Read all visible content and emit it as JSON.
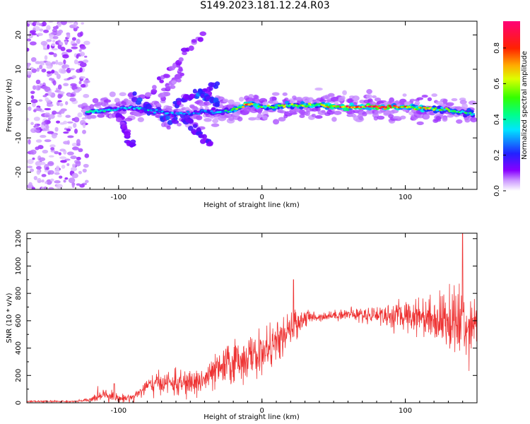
{
  "title": "S149.2023.181.12.24.R03",
  "chart_data": [
    {
      "type": "heatmap",
      "xlabel": "Height of straight line (km)",
      "ylabel": "Frequency (Hz)",
      "xlim": [
        -164,
        150
      ],
      "ylim": [
        -25,
        24
      ],
      "xticks": [
        -100,
        0,
        100
      ],
      "xtick_labels": [
        "-100",
        "0",
        "100"
      ],
      "yticks": [
        -20,
        -10,
        0,
        10,
        20
      ],
      "ytick_labels": [
        "-20",
        "-10",
        "0",
        "10",
        "20"
      ],
      "colorbar": {
        "label": "Normalized spectral amplitude",
        "range": [
          0,
          0.95
        ],
        "ticks": [
          0.0,
          0.2,
          0.4,
          0.6,
          0.8
        ],
        "tick_labels": [
          "0.0",
          "0.2",
          "0.4",
          "0.6",
          "0.8"
        ]
      },
      "ridge": {
        "description_points_x": [
          -122,
          -110,
          -100,
          -90,
          -80,
          -70,
          -60,
          -50,
          -40,
          -30,
          -20,
          -10,
          0,
          10,
          20,
          40,
          60,
          80,
          100,
          120,
          140,
          148
        ],
        "frequency": [
          -2.5,
          -2.0,
          -1.5,
          -1.0,
          -2.0,
          -2.5,
          -3.0,
          -3.0,
          -2.5,
          -2.5,
          -2.0,
          0.0,
          -1.0,
          -1.0,
          -0.5,
          -0.5,
          -1.0,
          -1.0,
          -1.0,
          -1.5,
          -2.5,
          -3.0
        ],
        "amplitude": [
          0.45,
          0.4,
          0.35,
          0.35,
          0.35,
          0.3,
          0.3,
          0.3,
          0.3,
          0.35,
          0.45,
          0.8,
          0.5,
          0.55,
          0.6,
          0.6,
          0.85,
          0.9,
          0.75,
          0.6,
          0.45,
          0.4
        ]
      }
    },
    {
      "type": "line",
      "xlabel": "Height of straight line (km)",
      "ylabel": "SNR (10 * v/v)",
      "xlim": [
        -164,
        150
      ],
      "ylim": [
        0,
        1240
      ],
      "xticks": [
        -100,
        0,
        100
      ],
      "xtick_labels": [
        "-100",
        "0",
        "100"
      ],
      "yticks": [
        0,
        200,
        400,
        600,
        800,
        1000,
        1200
      ],
      "ytick_labels": [
        "0",
        "200",
        "400",
        "600",
        "800",
        "1000",
        "1200"
      ],
      "color": "#ee3333",
      "envelope": {
        "x": [
          -164,
          -130,
          -120,
          -110,
          -100,
          -90,
          -80,
          -70,
          -60,
          -50,
          -40,
          -30,
          -20,
          -10,
          0,
          10,
          20,
          25,
          30,
          40,
          50,
          60,
          70,
          80,
          90,
          100,
          110,
          120,
          130,
          140,
          150
        ],
        "mean": [
          10,
          10,
          20,
          70,
          30,
          40,
          120,
          150,
          140,
          140,
          170,
          240,
          300,
          330,
          360,
          440,
          520,
          590,
          620,
          630,
          640,
          650,
          640,
          650,
          630,
          640,
          640,
          620,
          600,
          580,
          600
        ],
        "spread": [
          6,
          6,
          15,
          45,
          25,
          30,
          60,
          70,
          80,
          90,
          100,
          110,
          150,
          140,
          140,
          120,
          120,
          90,
          60,
          30,
          30,
          40,
          50,
          60,
          80,
          100,
          120,
          150,
          200,
          300,
          120
        ]
      },
      "annotations": {
        "peak_x": 140,
        "peak_value": 1240,
        "spike_x": 22,
        "spike_value": 900,
        "bump_x": -103,
        "bump_value": 140
      }
    }
  ]
}
